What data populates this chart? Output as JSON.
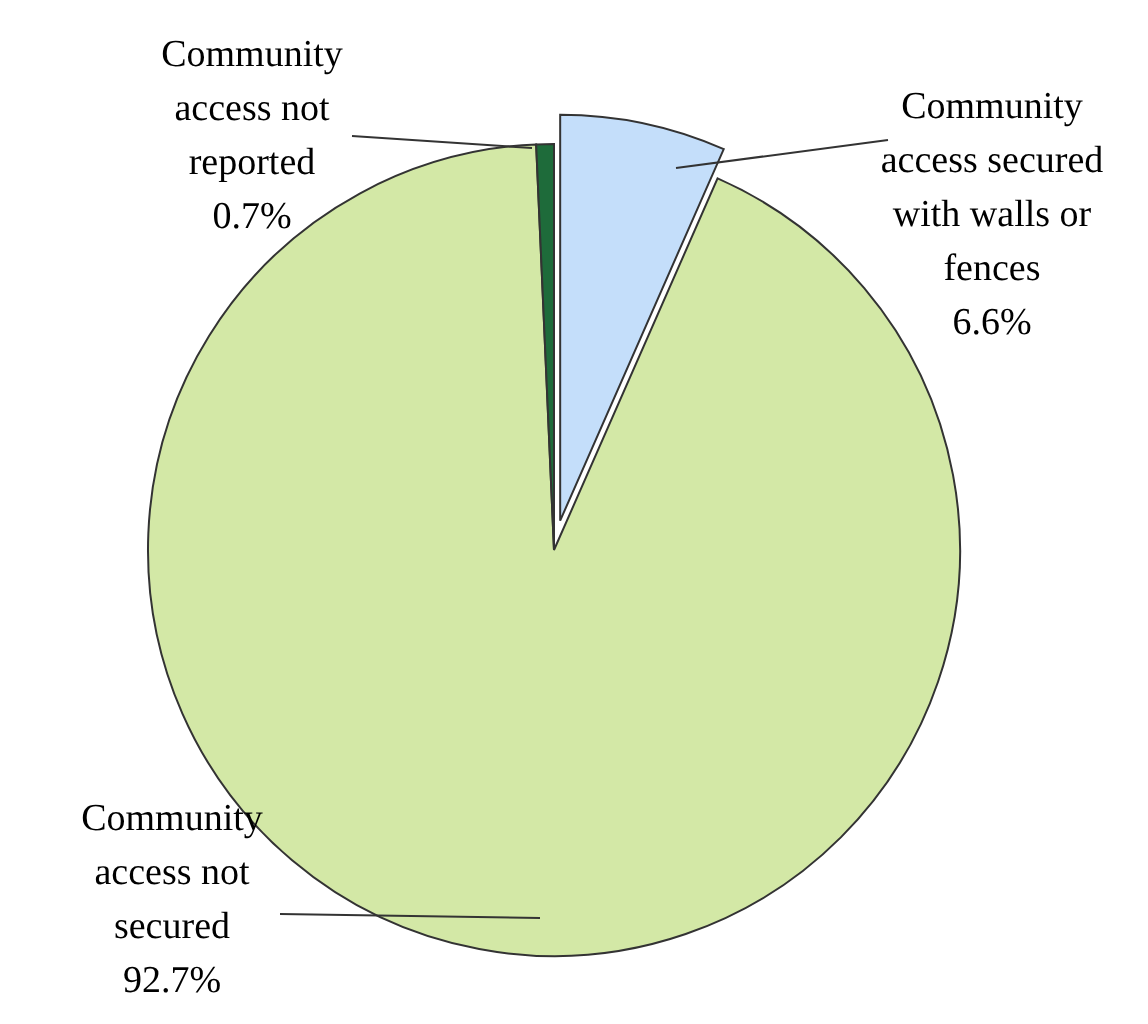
{
  "chart_data": {
    "type": "pie",
    "categories": [
      "Community access secured with walls or fences",
      "Community access not secured",
      "Community access not reported"
    ],
    "values": [
      6.6,
      92.7,
      0.7
    ],
    "colors": [
      "#c4defa",
      "#d3e8a6",
      "#1e6b3a"
    ],
    "value_labels": [
      "6.6%",
      "92.7%",
      "0.7%"
    ]
  }
}
